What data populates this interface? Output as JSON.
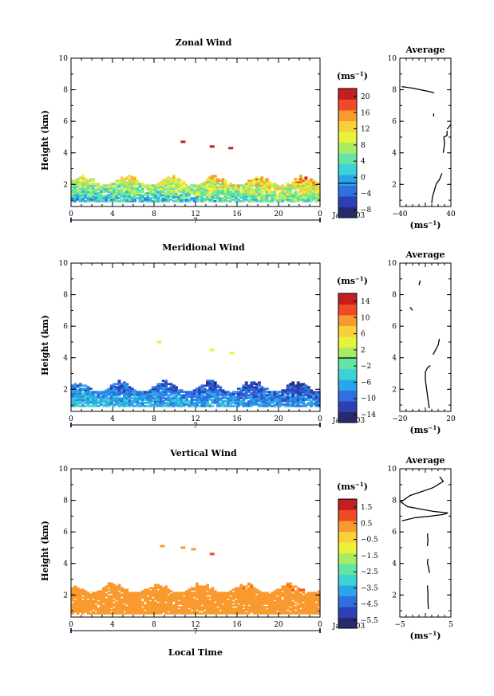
{
  "figure": {
    "xlabel": "Local Time",
    "date_label": "Jan 2003",
    "day_label": "7",
    "colors": {
      "colormap": [
        "#262b6b",
        "#2c3fb3",
        "#2f6fe0",
        "#2aa6e8",
        "#3cd2d6",
        "#64e4a4",
        "#a8ec62",
        "#e8f23a",
        "#f8d038",
        "#f89a2e",
        "#ee4a26",
        "#c41e1e"
      ],
      "axes": "#000000",
      "contour": "#000000"
    }
  },
  "chart_data": [
    {
      "type": "heatmap",
      "title": "Zonal Wind",
      "ylabel": "Height (km)",
      "xlim": [
        0,
        24
      ],
      "ylim": [
        0.6,
        10
      ],
      "xticks": [
        "0",
        "4",
        "8",
        "12",
        "16",
        "20",
        "0"
      ],
      "yticks": [
        "2",
        "4",
        "6",
        "8",
        "10"
      ],
      "colorbar": {
        "unit": "(ms",
        "unit_exp": "−1",
        "unit_close": ")",
        "range": [
          -8,
          22
        ],
        "labels": [
          "20",
          "16",
          "12",
          "8",
          "4",
          "0",
          "−4",
          "−8"
        ],
        "contour_level": 0
      },
      "data_region": {
        "z_bottom": 0.9,
        "z_top_min": 1.9,
        "z_top_max": 2.6
      },
      "profile_low": -2,
      "profile_high": 14,
      "isolated_points": [
        {
          "t": 10.8,
          "z": 4.7,
          "v": 20
        },
        {
          "t": 13.6,
          "z": 4.4,
          "v": 21
        },
        {
          "t": 15.4,
          "z": 4.3,
          "v": 21
        }
      ],
      "average": {
        "title": "Average",
        "xlabel": "(ms",
        "xlabel_exp": "−1",
        "xlabel_close": ")",
        "xlim": [
          -40,
          40
        ],
        "xticks": [
          "−40",
          "40"
        ],
        "yticks": [
          "2",
          "4",
          "6",
          "8",
          "10"
        ],
        "profile": [
          {
            "u": 10,
            "z": 0.8
          },
          {
            "u": 11,
            "z": 1.2
          },
          {
            "u": 14,
            "z": 1.6
          },
          {
            "u": 16,
            "z": 1.9
          },
          {
            "u": 18,
            "z": 2.1
          },
          {
            "u": 22,
            "z": 2.3
          },
          {
            "u": 24,
            "z": 2.5
          },
          {
            "u": 26,
            "z": 2.7
          }
        ],
        "segments": [
          [
            {
              "u": 28,
              "z": 4.0
            },
            {
              "u": 30,
              "z": 4.6
            },
            {
              "u": 29,
              "z": 5.0
            },
            {
              "u": 34,
              "z": 5.1
            },
            {
              "u": 34,
              "z": 5.4
            }
          ],
          [
            {
              "u": 34,
              "z": 5.5
            },
            {
              "u": 40,
              "z": 5.8
            }
          ],
          [
            {
              "u": 13,
              "z": 6.3
            },
            {
              "u": 13,
              "z": 6.5
            }
          ],
          [
            {
              "u": -37,
              "z": 8.2
            },
            {
              "u": -20,
              "z": 8.1
            },
            {
              "u": 5,
              "z": 7.9
            },
            {
              "u": 14,
              "z": 7.8
            }
          ]
        ]
      }
    },
    {
      "type": "heatmap",
      "title": "Meridional Wind",
      "ylabel": "Height (km)",
      "xlim": [
        0,
        24
      ],
      "ylim": [
        0.6,
        10
      ],
      "xticks": [
        "0",
        "4",
        "8",
        "12",
        "16",
        "20",
        "0"
      ],
      "yticks": [
        "2",
        "4",
        "6",
        "8",
        "10"
      ],
      "colorbar": {
        "unit": "(ms",
        "unit_exp": "−1",
        "unit_close": ")",
        "range": [
          -16,
          16
        ],
        "labels": [
          "14",
          "10",
          "6",
          "2",
          "−2",
          "−6",
          "−10",
          "−14"
        ],
        "contour_level": 0
      },
      "data_region": {
        "z_bottom": 0.9,
        "z_top_min": 1.8,
        "z_top_max": 2.6
      },
      "profile_low": -3,
      "profile_high": -12,
      "isolated_points": [
        {
          "t": 8.5,
          "z": 5.0,
          "v": 4
        },
        {
          "t": 13.6,
          "z": 4.5,
          "v": 3
        },
        {
          "t": 15.5,
          "z": 4.3,
          "v": 5
        }
      ],
      "average": {
        "title": "Average",
        "xlabel": "(ms",
        "xlabel_exp": "−1",
        "xlabel_close": ")",
        "xlim": [
          -20,
          20
        ],
        "xticks": [
          "−20",
          "20"
        ],
        "yticks": [
          "2",
          "4",
          "6",
          "8",
          "10"
        ],
        "profile": [
          {
            "u": 3,
            "z": 0.8
          },
          {
            "u": 2,
            "z": 1.4
          },
          {
            "u": 1,
            "z": 2.0
          },
          {
            "u": 0,
            "z": 2.6
          },
          {
            "u": 0,
            "z": 3.1
          },
          {
            "u": 2,
            "z": 3.4
          },
          {
            "u": 4,
            "z": 3.5
          }
        ],
        "segments": [
          [
            {
              "u": 6,
              "z": 4.2
            },
            {
              "u": 8,
              "z": 4.5
            },
            {
              "u": 10,
              "z": 4.8
            },
            {
              "u": 11,
              "z": 5.2
            }
          ],
          [
            {
              "u": -10,
              "z": 7.0
            },
            {
              "u": -12,
              "z": 7.2
            }
          ],
          [
            {
              "u": -5,
              "z": 8.6
            },
            {
              "u": -4,
              "z": 8.9
            }
          ]
        ]
      }
    },
    {
      "type": "heatmap",
      "title": "Vertical Wind",
      "ylabel": "Height (km)",
      "xlim": [
        0,
        24
      ],
      "ylim": [
        0.6,
        10
      ],
      "xticks": [
        "0",
        "4",
        "8",
        "12",
        "16",
        "20",
        "0"
      ],
      "yticks": [
        "2",
        "4",
        "6",
        "8",
        "10"
      ],
      "colorbar": {
        "unit": "(ms",
        "unit_exp": "−1",
        "unit_close": ")",
        "range": [
          -7,
          2.5
        ],
        "labels": [
          "1.5",
          "0.5",
          "−0.5",
          "−1.5",
          "−2.5",
          "−3.5",
          "−4.5",
          "−5.5"
        ],
        "contour_level": null
      },
      "data_region": {
        "z_bottom": 0.8,
        "z_top_min": 2.1,
        "z_top_max": 2.8
      },
      "profile_low": 0.2,
      "profile_high": 0.8,
      "isolated_points": [
        {
          "t": 8.8,
          "z": 5.1,
          "v": 0.3
        },
        {
          "t": 10.8,
          "z": 5.0,
          "v": 0.5
        },
        {
          "t": 11.8,
          "z": 4.9,
          "v": 0.3
        },
        {
          "t": 13.6,
          "z": 4.6,
          "v": 1.2
        }
      ],
      "average": {
        "title": "Average",
        "xlabel": "(ms",
        "xlabel_exp": "−1",
        "xlabel_close": ")",
        "xlim": [
          -5,
          5
        ],
        "xticks": [
          "−5",
          "5"
        ],
        "yticks": [
          "2",
          "4",
          "6",
          "8",
          "10"
        ],
        "profile": [
          {
            "u": 0.6,
            "z": 1.1
          },
          {
            "u": 0.5,
            "z": 1.6
          },
          {
            "u": 0.5,
            "z": 2.1
          },
          {
            "u": 0.4,
            "z": 2.6
          }
        ],
        "segments": [
          [
            {
              "u": 0.8,
              "z": 3.4
            },
            {
              "u": 0.6,
              "z": 3.8
            },
            {
              "u": 0.4,
              "z": 4.0
            },
            {
              "u": 0.5,
              "z": 4.3
            }
          ],
          [
            {
              "u": 0.4,
              "z": 5.1
            },
            {
              "u": 0.5,
              "z": 5.5
            },
            {
              "u": 0.4,
              "z": 5.9
            }
          ],
          [
            {
              "u": -4.6,
              "z": 6.7
            },
            {
              "u": -2,
              "z": 6.9
            },
            {
              "u": 1,
              "z": 7.0
            },
            {
              "u": 3.5,
              "z": 7.1
            },
            {
              "u": 4.4,
              "z": 7.2
            },
            {
              "u": 1.5,
              "z": 7.3
            },
            {
              "u": -3.5,
              "z": 7.6
            },
            {
              "u": -4.8,
              "z": 7.9
            },
            {
              "u": -3,
              "z": 8.3
            },
            {
              "u": 1.5,
              "z": 8.8
            },
            {
              "u": 3.5,
              "z": 9.2
            },
            {
              "u": 2.8,
              "z": 9.5
            }
          ]
        ]
      }
    }
  ]
}
